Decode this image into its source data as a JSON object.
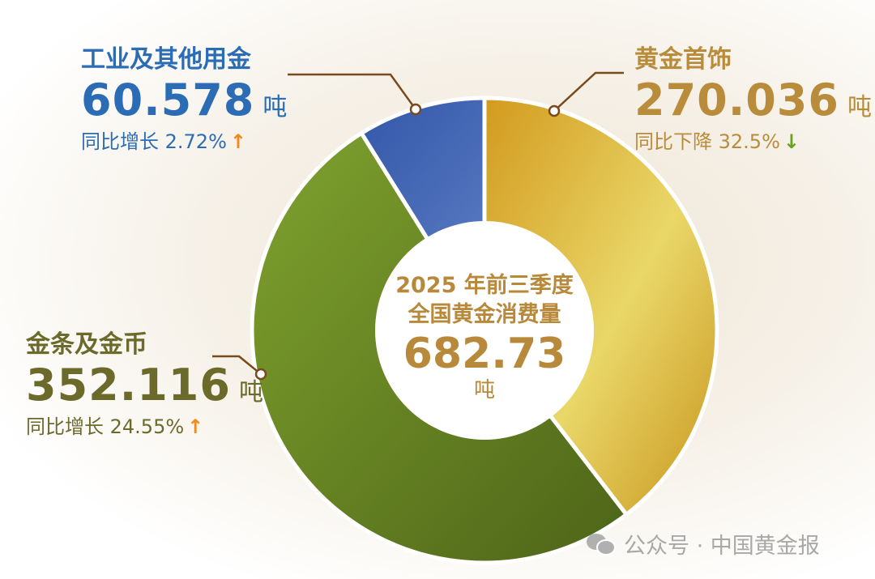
{
  "chart_data": {
    "type": "pie",
    "donut": true,
    "title": "2025 年前三季度\n全国黄金消费量",
    "total": {
      "line1": "2025 年前三季度",
      "line2": "全国黄金消费量",
      "value": "682.73",
      "unit": "吨"
    },
    "unit": "吨",
    "start": "12 o'clock, clockwise",
    "slices": [
      {
        "name": "黄金首饰",
        "value": 270.036,
        "value_label": "270.036",
        "yoy": "同比下降 32.5%",
        "trend": "down",
        "color": "#d9b02e",
        "text_color": "#b98c3c",
        "arrow_color": "#6aa21c"
      },
      {
        "name": "金条及金币",
        "value": 352.116,
        "value_label": "352.116",
        "yoy": "同比增长 24.55%",
        "trend": "up",
        "color": "#6a8a24",
        "text_color": "#6b6a2a",
        "arrow_color": "#f08a1c"
      },
      {
        "name": "工业及其他用金",
        "value": 60.578,
        "value_label": "60.578",
        "yoy": "同比增长 2.72%",
        "trend": "up",
        "color": "#3d5fae",
        "text_color": "#2b6cb5",
        "arrow_color": "#f08a1c"
      }
    ]
  },
  "watermark": {
    "icon": "wechat-icon",
    "text": "公众号 · 中国黄金报"
  }
}
